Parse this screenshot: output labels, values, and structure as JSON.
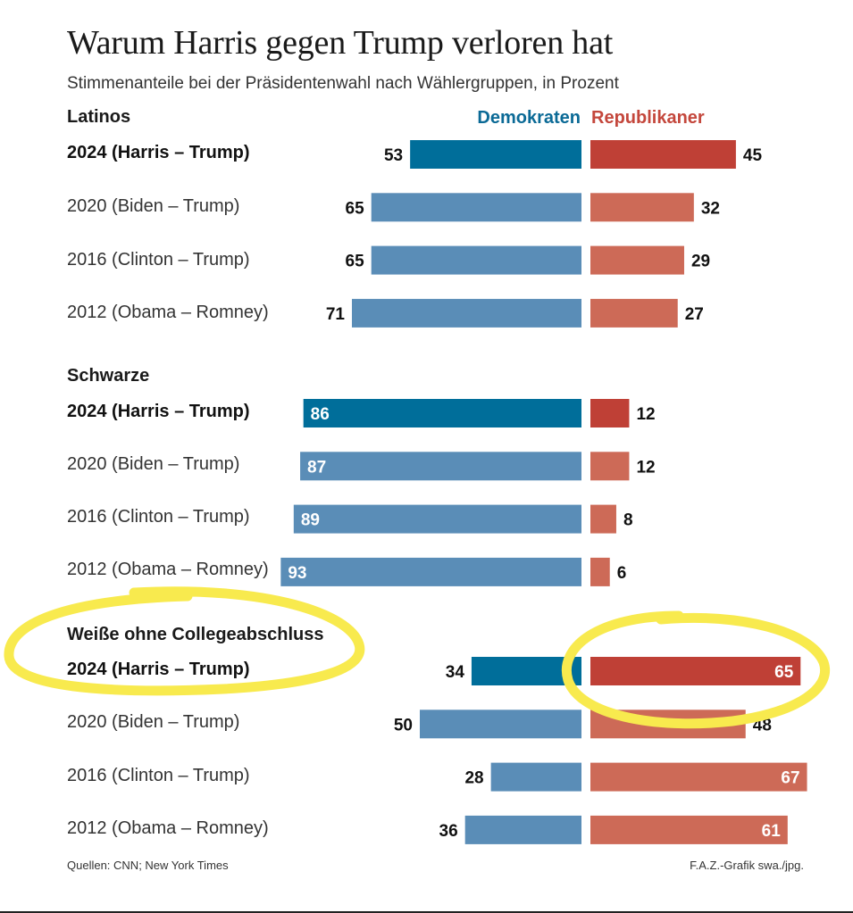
{
  "title": "Warum Harris gegen Trump verloren hat",
  "subtitle": "Stimmenanteile bei der Präsidentenwahl nach Wählergruppen, in Prozent",
  "legend": {
    "democrats": "Demokraten",
    "republicans": "Republikaner"
  },
  "footer": {
    "sources": "Quellen: CNN; New York Times",
    "credit": "F.A.Z.-Grafik swa./jpg."
  },
  "colors": {
    "dem_current": "#006e9a",
    "dem_past": "#5a8db7",
    "rep_current": "#bf4036",
    "rep_past": "#cd6a57",
    "highlight": "#f8ea4e"
  },
  "chart_data": {
    "type": "bar",
    "orientation": "horizontal-diverging",
    "title": "Warum Harris gegen Trump verloren hat",
    "subtitle": "Stimmenanteile bei der Präsidentenwahl nach Wählergruppen, in Prozent",
    "xlim": [
      0,
      100
    ],
    "unit": "Prozent",
    "series_names": [
      "Demokraten",
      "Republikaner"
    ],
    "groups": [
      {
        "name": "Latinos",
        "rows": [
          {
            "year": "2024",
            "label": "2024  (Harris – Trump)",
            "dem": 53,
            "rep": 45,
            "current": true
          },
          {
            "year": "2020",
            "label": "2020  (Biden – Trump)",
            "dem": 65,
            "rep": 32,
            "current": false
          },
          {
            "year": "2016",
            "label": "2016  (Clinton – Trump)",
            "dem": 65,
            "rep": 29,
            "current": false
          },
          {
            "year": "2012",
            "label": "2012  (Obama – Romney)",
            "dem": 71,
            "rep": 27,
            "current": false
          }
        ]
      },
      {
        "name": "Schwarze",
        "rows": [
          {
            "year": "2024",
            "label": "2024  (Harris – Trump)",
            "dem": 86,
            "rep": 12,
            "current": true
          },
          {
            "year": "2020",
            "label": "2020  (Biden – Trump)",
            "dem": 87,
            "rep": 12,
            "current": false
          },
          {
            "year": "2016",
            "label": "2016  (Clinton – Trump)",
            "dem": 89,
            "rep": 8,
            "current": false
          },
          {
            "year": "2012",
            "label": "2012  (Obama – Romney)",
            "dem": 93,
            "rep": 6,
            "current": false
          }
        ]
      },
      {
        "name": "Weiße ohne Collegeabschluss",
        "rows": [
          {
            "year": "2024",
            "label": "2024  (Harris – Trump)",
            "dem": 34,
            "rep": 65,
            "current": true
          },
          {
            "year": "2020",
            "label": "2020  (Biden – Trump)",
            "dem": 50,
            "rep": 48,
            "current": false
          },
          {
            "year": "2016",
            "label": "2016  (Clinton – Trump)",
            "dem": 28,
            "rep": 67,
            "current": false
          },
          {
            "year": "2012",
            "label": "2012  (Obama – Romney)",
            "dem": 36,
            "rep": 61,
            "current": false
          }
        ]
      }
    ]
  }
}
